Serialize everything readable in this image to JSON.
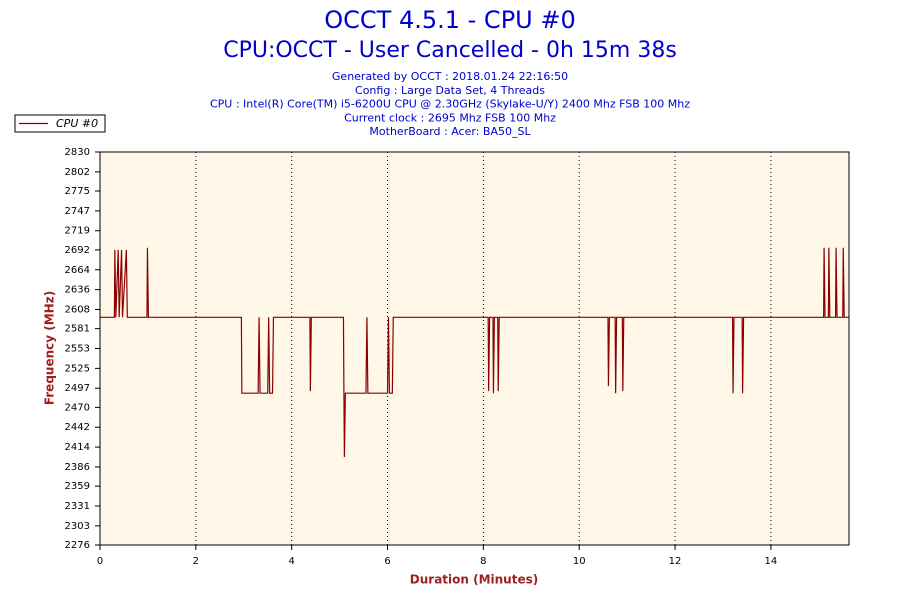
{
  "chart_data": {
    "type": "line",
    "title": "OCCT 4.5.1 - CPU #0",
    "subtitle": "CPU:OCCT - User Cancelled - 0h 15m 38s",
    "info_lines": [
      "Generated by OCCT : 2018.01.24 22:16:50",
      "Config : Large Data Set, 4 Threads",
      "CPU : Intel(R) Core(TM) i5-6200U CPU @ 2.30GHz (Skylake-U/Y) 2400 Mhz FSB 100 Mhz",
      "Current clock : 2695 Mhz FSB 100 Mhz",
      "MotherBoard : Acer: BA50_SL"
    ],
    "x_label": "Duration (Minutes)",
    "y_label": "Frequency (MHz)",
    "xlim": [
      0,
      15.63
    ],
    "xticks": [
      0,
      2,
      4,
      6,
      8,
      10,
      12,
      14
    ],
    "ylim": [
      2276,
      2830
    ],
    "yticks": [
      2276,
      2303,
      2331,
      2359,
      2386,
      2414,
      2442,
      2470,
      2497,
      2525,
      2553,
      2581,
      2608,
      2636,
      2664,
      2692,
      2719,
      2747,
      2775,
      2802,
      2830
    ],
    "grid": true,
    "legend": "top-left",
    "x": [
      0,
      0.3,
      0.31,
      0.33,
      0.38,
      0.4,
      0.45,
      0.47,
      0.55,
      0.57,
      0.98,
      0.99,
      1.01,
      2.95,
      2.96,
      3.3,
      3.32,
      3.34,
      3.5,
      3.52,
      3.54,
      3.6,
      3.62,
      4.38,
      4.39,
      4.41,
      5.08,
      5.09,
      5.1,
      5.12,
      5.55,
      5.57,
      5.59,
      6.0,
      6.02,
      6.04,
      6.1,
      6.12,
      8.1,
      8.11,
      8.13,
      8.2,
      8.21,
      8.23,
      8.3,
      8.31,
      8.33,
      10.6,
      10.61,
      10.63,
      10.75,
      10.76,
      10.78,
      10.9,
      10.91,
      10.93,
      13.2,
      13.21,
      13.23,
      13.4,
      13.41,
      13.43,
      15.1,
      15.11,
      15.13,
      15.2,
      15.21,
      15.23,
      15.35,
      15.36,
      15.38,
      15.5,
      15.51,
      15.53,
      15.63
    ],
    "series": [
      {
        "name": "CPU #0",
        "color": "#8b0000",
        "values": [
          2597,
          2597,
          2692,
          2597,
          2692,
          2597,
          2692,
          2597,
          2692,
          2597,
          2597,
          2695,
          2597,
          2597,
          2490,
          2490,
          2597,
          2490,
          2490,
          2597,
          2490,
          2490,
          2597,
          2597,
          2493,
          2597,
          2597,
          2490,
          2400,
          2490,
          2490,
          2597,
          2490,
          2490,
          2597,
          2490,
          2490,
          2597,
          2597,
          2493,
          2597,
          2597,
          2490,
          2597,
          2597,
          2493,
          2597,
          2597,
          2500,
          2597,
          2597,
          2490,
          2597,
          2597,
          2493,
          2597,
          2597,
          2490,
          2597,
          2597,
          2490,
          2597,
          2597,
          2695,
          2597,
          2597,
          2695,
          2597,
          2597,
          2695,
          2597,
          2597,
          2695,
          2597,
          2597
        ]
      }
    ]
  }
}
